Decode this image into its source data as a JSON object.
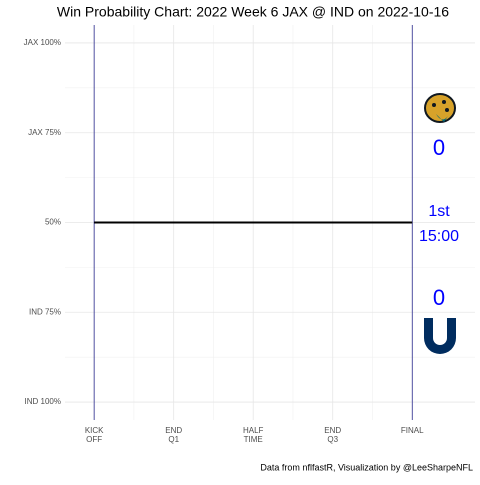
{
  "chart_data": {
    "type": "line",
    "title": "Win Probability Chart: 2022 Week 6 JAX @ IND on 2022-10-16",
    "caption": "Data from nflfastR, Visualization by @LeeSharpeNFL",
    "x": [
      0,
      3600
    ],
    "series": [
      {
        "name": "JAX win probability",
        "color": "#000000",
        "values": [
          50,
          50
        ]
      }
    ],
    "xlim": [
      -330,
      4310
    ],
    "xticks": [
      {
        "value": 0,
        "label": "KICK\nOFF"
      },
      {
        "value": 900,
        "label": "END\nQ1"
      },
      {
        "value": 1800,
        "label": "HALF\nTIME"
      },
      {
        "value": 2700,
        "label": "END\nQ3"
      },
      {
        "value": 3600,
        "label": "FINAL"
      }
    ],
    "ylim": [
      -5,
      105
    ],
    "yticks": [
      {
        "value": 0,
        "label": "IND 100%"
      },
      {
        "value": 25,
        "label": "IND 75%"
      },
      {
        "value": 50,
        "label": "50%"
      },
      {
        "value": 75,
        "label": "JAX 75%"
      },
      {
        "value": 100,
        "label": "JAX 100%"
      }
    ],
    "grid": true,
    "period_line_color": "#2b2b8f",
    "annotation_color": "#0000ff",
    "away_score": 0,
    "home_score": 0,
    "quarter": "1st",
    "clock": "15:00"
  }
}
